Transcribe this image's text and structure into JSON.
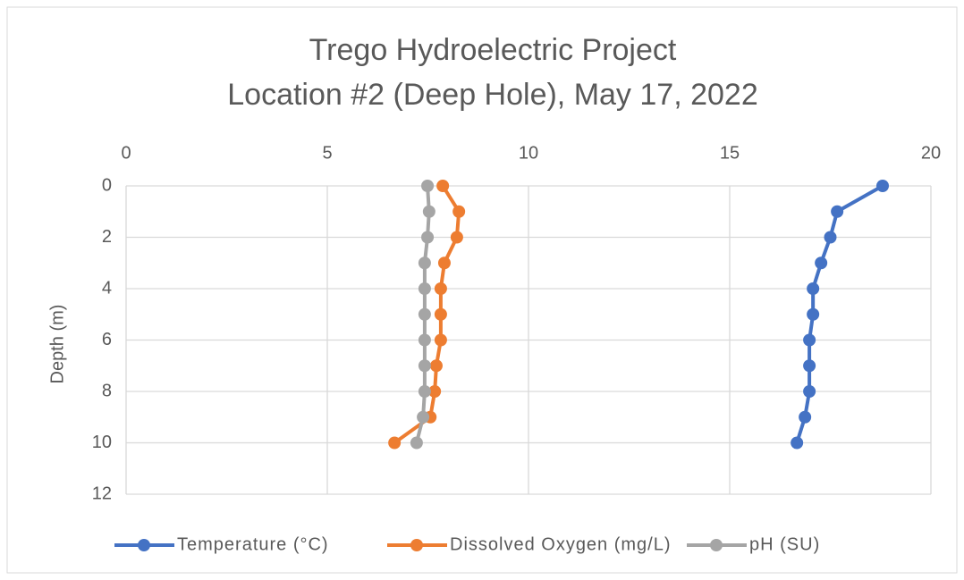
{
  "chart_data": {
    "type": "line",
    "title": [
      "Trego Hydroelectric Project",
      "Location #2 (Deep Hole), May 17, 2022"
    ],
    "y_label": "Depth (m)",
    "y": [
      0,
      1,
      2,
      3,
      4,
      5,
      6,
      7,
      8,
      9,
      10
    ],
    "series": [
      {
        "name": "Temperature (°C)",
        "color": "#4472c4",
        "values": [
          18.8,
          17.67,
          17.5,
          17.27,
          17.07,
          17.07,
          16.98,
          16.98,
          16.98,
          16.87,
          16.67
        ]
      },
      {
        "name": "Dissolved Oxygen (mg/L)",
        "color": "#ed7d31",
        "values": [
          7.87,
          8.27,
          8.22,
          7.91,
          7.82,
          7.82,
          7.82,
          7.71,
          7.67,
          7.56,
          6.67
        ]
      },
      {
        "name": "pH (SU)",
        "color": "#a5a5a5",
        "values": [
          7.49,
          7.53,
          7.49,
          7.42,
          7.42,
          7.42,
          7.42,
          7.42,
          7.42,
          7.38,
          7.22
        ]
      }
    ],
    "xlim": [
      0,
      20
    ],
    "xticks": [
      0,
      5,
      10,
      15,
      20
    ],
    "ylim": [
      0,
      12
    ],
    "yticks": [
      0,
      2,
      4,
      6,
      8,
      10,
      12
    ],
    "y_inverted": true,
    "grid": true,
    "legend": "bottom"
  }
}
